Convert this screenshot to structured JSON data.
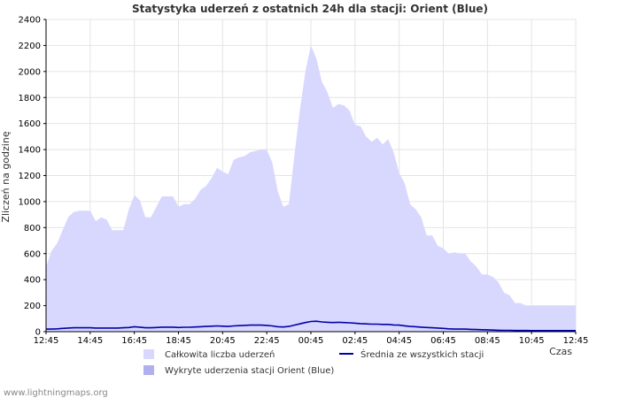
{
  "chart_data": {
    "type": "area",
    "title": "Statystyka uderzeń z ostatnich 24h dla stacji: Orient (Blue)",
    "ylabel": "Zliczeń na godzinę",
    "xlabel": "Czas",
    "ylim": [
      0,
      2400
    ],
    "yticks": [
      0,
      200,
      400,
      600,
      800,
      1000,
      1200,
      1400,
      1600,
      1800,
      2000,
      2200,
      2400
    ],
    "xticks": [
      "12:45",
      "14:45",
      "16:45",
      "18:45",
      "20:45",
      "22:45",
      "00:45",
      "02:45",
      "04:45",
      "06:45",
      "08:45",
      "10:45",
      "12:45"
    ],
    "x_step_minutes": 15,
    "series": [
      {
        "name": "Całkowita liczba uderzeń",
        "color": "#d8d8ff",
        "values": [
          500,
          620,
          680,
          780,
          880,
          920,
          930,
          930,
          930,
          850,
          880,
          860,
          780,
          780,
          780,
          940,
          1050,
          1010,
          880,
          880,
          960,
          1040,
          1040,
          1040,
          960,
          980,
          980,
          1020,
          1090,
          1120,
          1180,
          1260,
          1230,
          1210,
          1320,
          1340,
          1350,
          1380,
          1390,
          1400,
          1400,
          1300,
          1080,
          960,
          980,
          1350,
          1700,
          2000,
          2200,
          2100,
          1920,
          1840,
          1720,
          1750,
          1740,
          1700,
          1590,
          1580,
          1500,
          1460,
          1490,
          1440,
          1480,
          1380,
          1220,
          1140,
          980,
          940,
          880,
          740,
          740,
          660,
          640,
          600,
          610,
          600,
          600,
          540,
          500,
          440,
          440,
          420,
          380,
          300,
          280,
          220,
          220,
          200,
          200,
          200,
          200,
          200,
          200,
          200,
          200,
          200,
          200
        ]
      },
      {
        "name": "Średnia ze wszystkich stacji",
        "color": "#0000aa",
        "values": [
          20,
          20,
          22,
          25,
          28,
          30,
          30,
          30,
          30,
          28,
          28,
          28,
          28,
          28,
          30,
          32,
          38,
          35,
          30,
          30,
          32,
          35,
          35,
          35,
          32,
          34,
          34,
          36,
          38,
          40,
          42,
          44,
          42,
          40,
          44,
          46,
          48,
          50,
          50,
          50,
          48,
          44,
          38,
          36,
          40,
          50,
          60,
          70,
          78,
          80,
          75,
          72,
          70,
          72,
          70,
          68,
          65,
          62,
          60,
          58,
          58,
          56,
          56,
          52,
          50,
          45,
          40,
          38,
          35,
          32,
          30,
          28,
          25,
          22,
          20,
          20,
          20,
          18,
          16,
          15,
          14,
          12,
          11,
          10,
          10,
          9,
          9,
          9,
          8,
          8,
          8,
          8,
          8,
          8,
          8,
          8,
          8
        ]
      },
      {
        "name": "Wykryte uderzenia stacji Orient (Blue)",
        "color": "#b0b0f0",
        "values": []
      }
    ],
    "legend": [
      {
        "label": "Całkowita liczba uderzeń",
        "kind": "area",
        "color": "#d8d8ff"
      },
      {
        "label": "Średnia ze wszystkich stacji",
        "kind": "line",
        "color": "#0000aa"
      },
      {
        "label": "Wykryte uderzenia stacji Orient (Blue)",
        "kind": "area",
        "color": "#b0b0f0"
      }
    ]
  },
  "footer": "www.lightningmaps.org"
}
